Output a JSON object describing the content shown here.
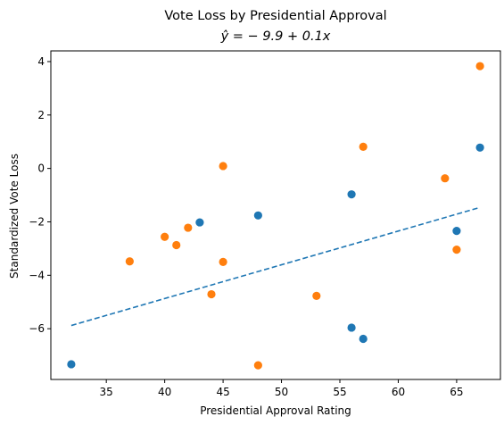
{
  "chart_data": {
    "type": "scatter",
    "title": "Vote Loss by Presidential Approval",
    "subtitle": "ŷ = − 9.9 + 0.1x",
    "xlabel": "Presidential Approval Rating",
    "ylabel": "Standardized Vote Loss",
    "xlim": [
      30.25,
      68.75
    ],
    "ylim": [
      -7.9,
      4.4
    ],
    "xticks": [
      35,
      40,
      45,
      50,
      55,
      60,
      65
    ],
    "yticks": [
      -6,
      -4,
      -2,
      0,
      2,
      4
    ],
    "grid": false,
    "series": [
      {
        "color": "#1f77b4",
        "points": [
          [
            32,
            -7.33
          ],
          [
            43,
            -2.02
          ],
          [
            48,
            -1.76
          ],
          [
            56,
            -0.97
          ],
          [
            56,
            -5.96
          ],
          [
            57,
            -6.38
          ],
          [
            65,
            -2.34
          ],
          [
            67,
            0.78
          ]
        ]
      },
      {
        "color": "#ff7f0e",
        "points": [
          [
            37,
            -3.48
          ],
          [
            40,
            -2.56
          ],
          [
            41,
            -2.87
          ],
          [
            42,
            -2.22
          ],
          [
            44,
            -4.71
          ],
          [
            45,
            0.09
          ],
          [
            45,
            -3.5
          ],
          [
            48,
            -7.37
          ],
          [
            53,
            -4.77
          ],
          [
            57,
            0.81
          ],
          [
            64,
            -0.37
          ],
          [
            65,
            -3.04
          ],
          [
            67,
            3.83
          ]
        ]
      }
    ],
    "fit_line": {
      "intercept": -9.9,
      "slope": 0.1,
      "x_range": [
        32,
        67
      ],
      "y_range": [
        -5.88,
        -1.46
      ],
      "color": "#1f77b4",
      "style": "dashed"
    }
  }
}
